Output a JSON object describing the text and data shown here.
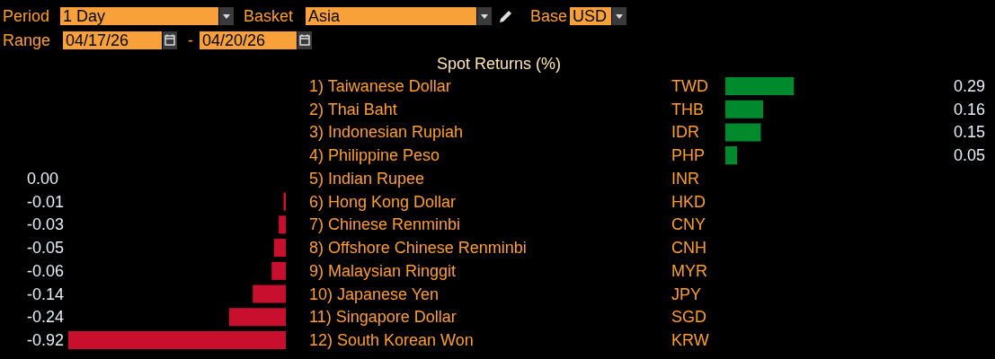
{
  "chart_data": [
    {
      "type": "bar",
      "orientation": "horizontal",
      "title": "Spot Returns (%)",
      "categories": [
        "1) Taiwanese Dollar",
        "2) Thai Baht",
        "3) Indonesian Rupiah",
        "4) Philippine Peso"
      ],
      "values": [
        0.29,
        0.16,
        0.15,
        0.05
      ],
      "colors": [
        "#008a2e",
        "#008a2e",
        "#008a2e",
        "#008a2e"
      ],
      "data_labels": true,
      "annotations": [
        "Period",
        "1 Day",
        "Basket",
        "Asia",
        "Base",
        "USD",
        "Range",
        "04/17/26",
        "-",
        "04/20/26",
        "TWD",
        "THB",
        "IDR",
        "PHP"
      ]
    },
    {
      "type": "bar",
      "orientation": "horizontal",
      "categories": [
        "5) Indian Rupee",
        "6) Hong Kong Dollar",
        "7) Chinese Renminbi",
        "8) Offshore Chinese Renminbi",
        "9) Malaysian Ringgit",
        "10) Japanese Yen",
        "11) Singapore Dollar",
        "12) South Korean Won"
      ],
      "values": [
        0.0,
        -0.01,
        -0.03,
        -0.05,
        -0.06,
        -0.14,
        -0.24,
        -0.92
      ],
      "colors": [
        "#c8102e",
        "#c8102e",
        "#c8102e",
        "#c8102e",
        "#c8102e",
        "#c8102e",
        "#c8102e",
        "#c8102e"
      ],
      "value_labels": [
        "0.00",
        "-0.01",
        "-0.03",
        "-0.05",
        "-0.06",
        "-0.14",
        "-0.24",
        "-0.92"
      ],
      "annotations": [
        "INR",
        "HKD",
        "CNY",
        "CNH",
        "MYR",
        "JPY",
        "SGD",
        "KRW"
      ]
    }
  ]
}
